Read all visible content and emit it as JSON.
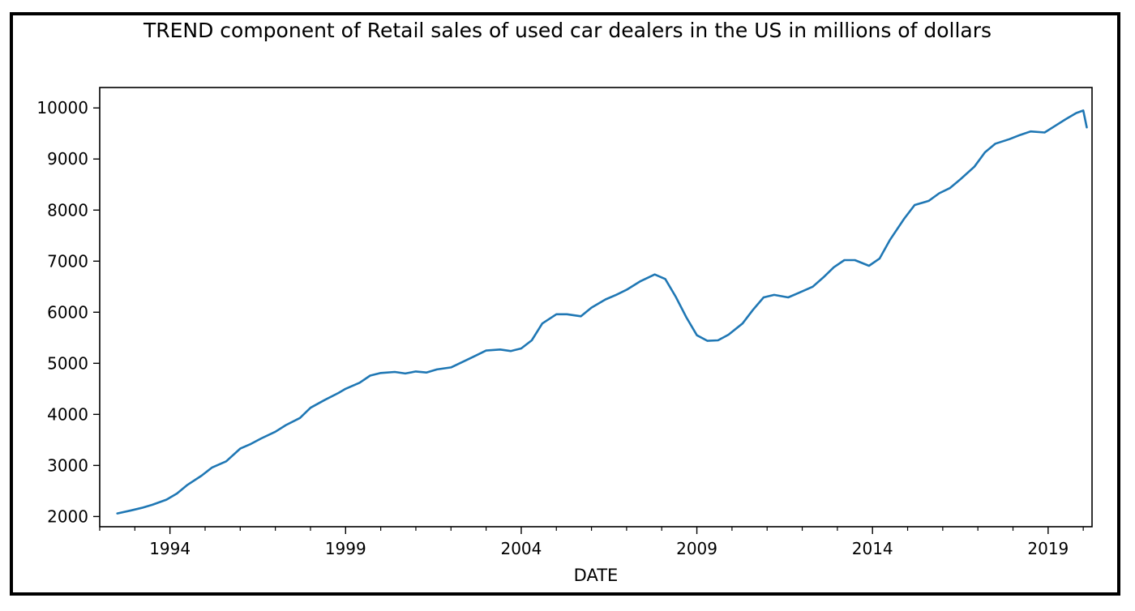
{
  "chart_data": {
    "type": "line",
    "title": "TREND component of Retail sales of used car dealers in the US in millions of dollars",
    "xlabel": "DATE",
    "ylabel": "",
    "xlim": [
      1992.0,
      2020.25
    ],
    "ylim": [
      1800,
      10400
    ],
    "x_ticks": [
      1994,
      1999,
      2004,
      2009,
      2014,
      2019
    ],
    "y_ticks": [
      2000,
      3000,
      4000,
      5000,
      6000,
      7000,
      8000,
      9000,
      10000
    ],
    "grid": false,
    "legend": "none",
    "line_color": "#1f77b4",
    "series": [
      {
        "x": [
          1992.5,
          1992.9,
          1993.2,
          1993.5,
          1993.9,
          1994.2,
          1994.5,
          1994.9,
          1995.2,
          1995.6,
          1996.0,
          1996.3,
          1996.6,
          1997.0,
          1997.3,
          1997.7,
          1998.0,
          1998.4,
          1998.8,
          1999.0,
          1999.4,
          1999.7,
          2000.0,
          2000.4,
          2000.7,
          2001.0,
          2001.3,
          2001.6,
          2002.0,
          2002.4,
          2002.7,
          2003.0,
          2003.4,
          2003.7,
          2004.0,
          2004.3,
          2004.6,
          2005.0,
          2005.3,
          2005.7,
          2006.0,
          2006.4,
          2006.7,
          2007.0,
          2007.4,
          2007.8,
          2008.1,
          2008.4,
          2008.7,
          2009.0,
          2009.3,
          2009.6,
          2009.9,
          2010.3,
          2010.6,
          2010.9,
          2011.2,
          2011.6,
          2011.9,
          2012.3,
          2012.6,
          2012.9,
          2013.2,
          2013.5,
          2013.9,
          2014.2,
          2014.5,
          2014.9,
          2015.2,
          2015.6,
          2015.9,
          2016.2,
          2016.5,
          2016.9,
          2017.2,
          2017.5,
          2017.9,
          2018.2,
          2018.5,
          2018.9,
          2019.2,
          2019.5,
          2019.8,
          2020.0,
          2020.1
        ],
        "y": [
          2060,
          2120,
          2170,
          2230,
          2330,
          2450,
          2620,
          2800,
          2960,
          3080,
          3330,
          3420,
          3530,
          3660,
          3790,
          3930,
          4130,
          4280,
          4420,
          4500,
          4620,
          4760,
          4810,
          4830,
          4800,
          4840,
          4820,
          4880,
          4920,
          5050,
          5150,
          5250,
          5270,
          5240,
          5290,
          5450,
          5780,
          5960,
          5960,
          5920,
          6090,
          6250,
          6340,
          6440,
          6610,
          6740,
          6650,
          6300,
          5900,
          5550,
          5440,
          5450,
          5560,
          5780,
          6050,
          6290,
          6340,
          6290,
          6380,
          6500,
          6680,
          6880,
          7020,
          7020,
          6910,
          7050,
          7420,
          7830,
          8100,
          8180,
          8330,
          8430,
          8600,
          8850,
          9130,
          9300,
          9390,
          9470,
          9540,
          9520,
          9650,
          9780,
          9900,
          9950,
          9620
        ]
      }
    ]
  }
}
